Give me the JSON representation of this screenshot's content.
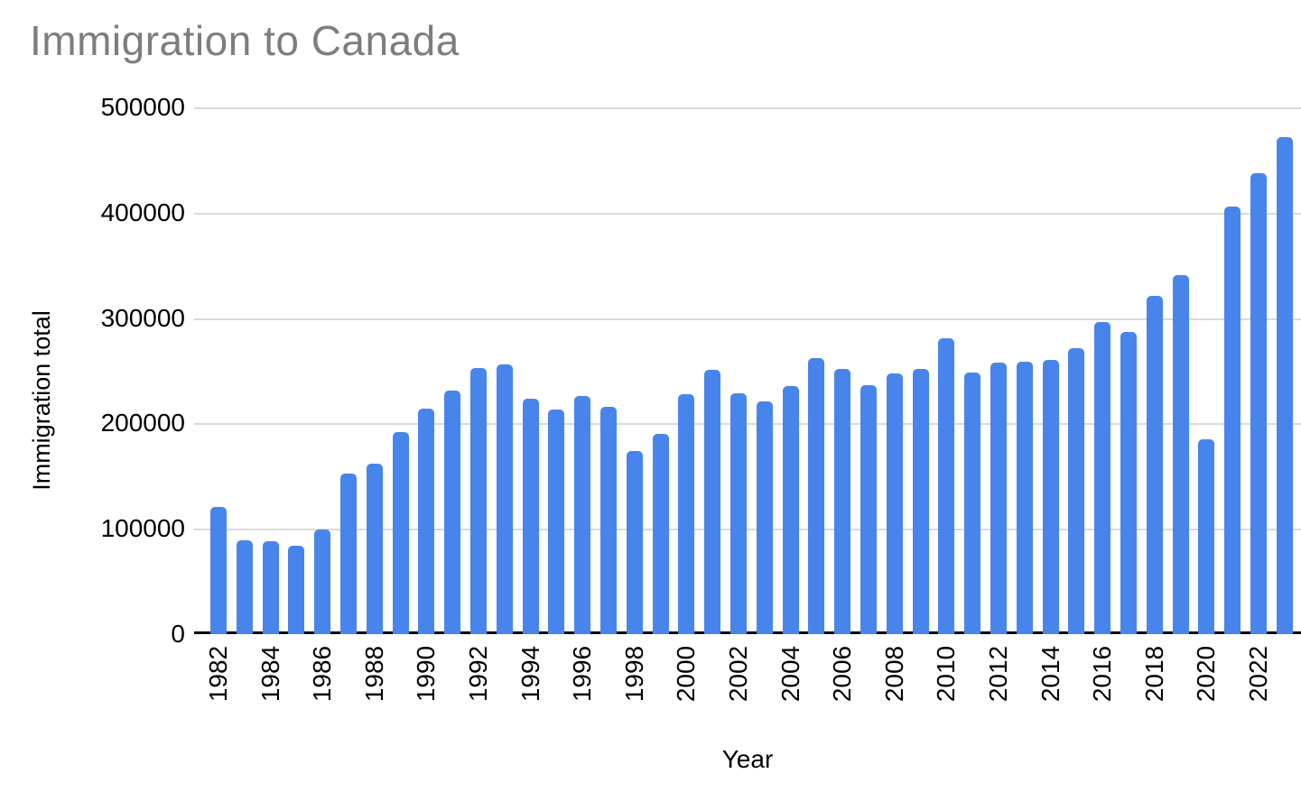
{
  "page": {
    "background": "#ffffff"
  },
  "chart_data": {
    "type": "bar",
    "title": "Immigration to Canada",
    "xlabel": "Year",
    "ylabel": "Immigration total",
    "legend": "none",
    "grid": "horizontal",
    "ylim": [
      0,
      500000
    ],
    "yticks": [
      0,
      100000,
      200000,
      300000,
      400000,
      500000
    ],
    "x_tick_every": 2,
    "x_tick_labels": [
      "1982",
      "1984",
      "1986",
      "1988",
      "1990",
      "1992",
      "1994",
      "1996",
      "1998",
      "2000",
      "2002",
      "2004",
      "2006",
      "2008",
      "2010",
      "2012",
      "2014",
      "2016",
      "2018",
      "2020",
      "2022"
    ],
    "categories": [
      1982,
      1983,
      1984,
      1985,
      1986,
      1987,
      1988,
      1989,
      1990,
      1991,
      1992,
      1993,
      1994,
      1995,
      1996,
      1997,
      1998,
      1999,
      2000,
      2001,
      2002,
      2003,
      2004,
      2005,
      2006,
      2007,
      2008,
      2009,
      2010,
      2011,
      2012,
      2013,
      2014,
      2015,
      2016,
      2017,
      2018,
      2019,
      2020,
      2021,
      2022,
      2023
    ],
    "values": [
      121147,
      89157,
      88239,
      84302,
      99219,
      152098,
      161929,
      192001,
      214230,
      230781,
      252842,
      255819,
      223875,
      212859,
      226071,
      216014,
      174195,
      189951,
      227455,
      250637,
      229048,
      221349,
      235823,
      262242,
      251640,
      236753,
      247245,
      252170,
      280687,
      248748,
      257895,
      258953,
      260404,
      271845,
      296370,
      286480,
      321035,
      341173,
      184606,
      405999,
      437539,
      471550
    ],
    "colors": {
      "bar": "#4785ec",
      "title": "#7d7d7d",
      "labels": "#000000",
      "gridline": "#d9d9d9",
      "axis_line": "#000000",
      "background": "#ffffff"
    }
  }
}
